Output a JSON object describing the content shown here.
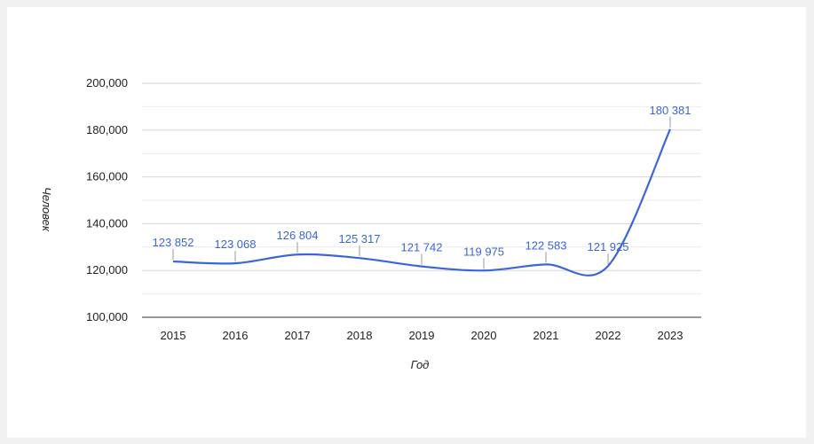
{
  "chart_data": {
    "type": "line",
    "categories": [
      "2015",
      "2016",
      "2017",
      "2018",
      "2019",
      "2020",
      "2021",
      "2022",
      "2023"
    ],
    "series": [
      {
        "values": [
          123852,
          123068,
          126804,
          125317,
          121742,
          119975,
          122583,
          121925,
          180381
        ],
        "labels": [
          "123 852",
          "123 068",
          "126 804",
          "125 317",
          "121 742",
          "119 975",
          "122 583",
          "121 925",
          "180 381"
        ],
        "color": "#3a66d6"
      }
    ],
    "yticks": [
      100000,
      120000,
      140000,
      160000,
      180000,
      200000
    ],
    "ytick_labels": [
      "100,000",
      "120,000",
      "140,000",
      "160,000",
      "180,000",
      "200,000"
    ],
    "ylim": [
      100000,
      200000
    ],
    "xlabel": "Год",
    "ylabel": "Человек",
    "grid": true,
    "smooth": true
  }
}
